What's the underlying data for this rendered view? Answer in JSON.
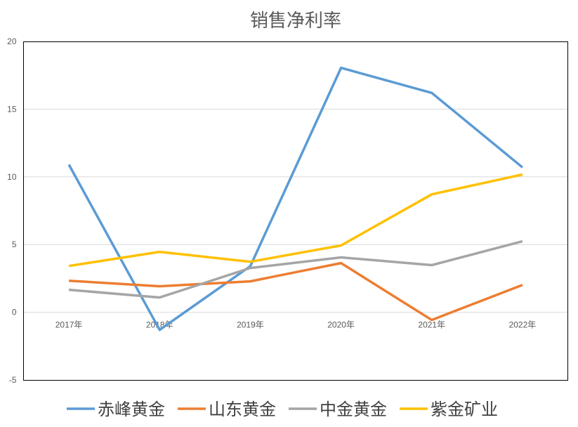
{
  "chart_data": {
    "type": "line",
    "title": "销售净利率",
    "categories": [
      "2017年",
      "2018年",
      "2019年",
      "2020年",
      "2021年",
      "2022年"
    ],
    "ylim": [
      -5,
      20
    ],
    "yticks": [
      -5,
      0,
      5,
      10,
      15,
      20
    ],
    "grid": true,
    "legend": "bottom",
    "series": [
      {
        "name": "赤峰黄金",
        "color": "#5B9BD5",
        "values": [
          10.9,
          -1.3,
          3.4,
          18.05,
          16.2,
          10.7
        ]
      },
      {
        "name": "山东黄金",
        "color": "#ED7D31",
        "values": [
          2.33,
          1.92,
          2.28,
          3.63,
          -0.57,
          2.02
        ]
      },
      {
        "name": "中金黄金",
        "color": "#A5A5A5",
        "values": [
          1.66,
          1.09,
          3.27,
          4.05,
          3.48,
          5.24
        ]
      },
      {
        "name": "紫金矿业",
        "color": "#FFC000",
        "values": [
          3.42,
          4.46,
          3.73,
          4.93,
          8.71,
          10.17
        ]
      }
    ]
  }
}
